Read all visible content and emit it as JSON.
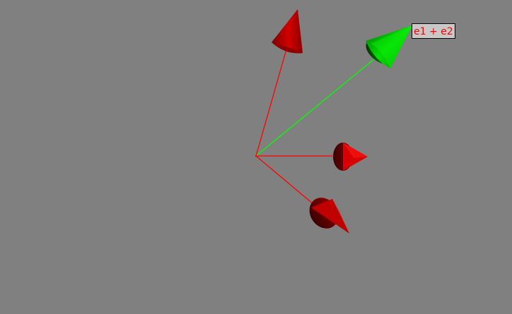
{
  "scene": {
    "background_color": "#808080",
    "basis_vector_color": "#ff0000",
    "sum_vector_color": "#00ff00",
    "label": {
      "text": "e1 + e2",
      "text_color": "#ff0000",
      "background_color": "#c8c8c8",
      "border_color": "#000000"
    }
  }
}
